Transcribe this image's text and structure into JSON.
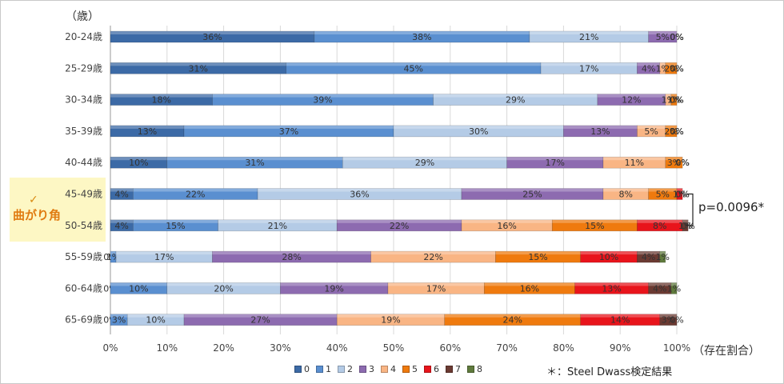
{
  "chart_data": {
    "type": "bar",
    "orientation": "horizontal",
    "stacked": true,
    "y_unit_label": "（歳）",
    "x_unit_label": "（存在割合）",
    "categories": [
      "20-24歳",
      "25-29歳",
      "30-34歳",
      "35-39歳",
      "40-44歳",
      "45-49歳",
      "50-54歳",
      "55-59歳",
      "60-64歳",
      "65-69歳"
    ],
    "x_ticks": [
      "0%",
      "10%",
      "20%",
      "30%",
      "40%",
      "50%",
      "60%",
      "70%",
      "80%",
      "90%",
      "100%"
    ],
    "xlim": [
      0,
      100
    ],
    "grid": true,
    "legend_position": "bottom",
    "series": [
      {
        "name": "0",
        "color": "#3c6aa6",
        "values": [
          36,
          31,
          18,
          13,
          10,
          4,
          4,
          0,
          0,
          0
        ],
        "labels": [
          "36%",
          "31%",
          "18%",
          "13%",
          "10%",
          "4%",
          "4%",
          "0%",
          "0%",
          "0%"
        ]
      },
      {
        "name": "1",
        "color": "#5a8fd0",
        "values": [
          38,
          45,
          39,
          37,
          31,
          22,
          15,
          1,
          10,
          3
        ],
        "labels": [
          "38%",
          "45%",
          "39%",
          "37%",
          "31%",
          "22%",
          "15%",
          "1%",
          "10%",
          "3%"
        ]
      },
      {
        "name": "2",
        "color": "#b4cbe6",
        "values": [
          21,
          17,
          29,
          30,
          29,
          36,
          21,
          17,
          20,
          10
        ],
        "labels": [
          "21%",
          "17%",
          "29%",
          "30%",
          "29%",
          "36%",
          "21%",
          "17%",
          "20%",
          "10%"
        ]
      },
      {
        "name": "3",
        "color": "#8d6bb0",
        "values": [
          5,
          4,
          12,
          13,
          17,
          25,
          22,
          28,
          19,
          27
        ],
        "labels": [
          "5%",
          "4%",
          "12%",
          "13%",
          "17%",
          "25%",
          "22%",
          "28%",
          "19%",
          "27%"
        ]
      },
      {
        "name": "4",
        "color": "#f9b584",
        "values": [
          0,
          1,
          1,
          5,
          11,
          8,
          16,
          22,
          17,
          19
        ],
        "labels": [
          "0%",
          "1%",
          "1%",
          "5%",
          "11%",
          "8%",
          "16%",
          "22%",
          "17%",
          "19%"
        ]
      },
      {
        "name": "5",
        "color": "#ef7a0e",
        "values": [
          0,
          2,
          1,
          2,
          3,
          5,
          15,
          15,
          16,
          24
        ],
        "labels": [
          "0%",
          "2%",
          "1%",
          "2%",
          "3%",
          "5%",
          "15%",
          "15%",
          "16%",
          "24%"
        ]
      },
      {
        "name": "6",
        "color": "#e8141b",
        "values": [
          0,
          0,
          0,
          0,
          0,
          1,
          8,
          10,
          13,
          14
        ],
        "labels": [
          "0%",
          "0%",
          "0%",
          "0%",
          "0%",
          "1%",
          "8%",
          "10%",
          "13%",
          "14%"
        ]
      },
      {
        "name": "7",
        "color": "#6b3a32",
        "values": [
          0,
          0,
          0,
          0,
          0,
          0,
          1,
          4,
          4,
          3
        ],
        "labels": [
          "0%",
          "0%",
          "0%",
          "0%",
          "0%",
          "0%",
          "1%",
          "4%",
          "4%",
          "3%"
        ]
      },
      {
        "name": "8",
        "color": "#5f7a3c",
        "values": [
          0,
          0,
          0,
          0,
          0,
          0,
          0,
          1,
          1,
          0
        ],
        "labels": [
          "0%",
          "0%",
          "0%",
          "0%",
          "0%",
          "0%",
          "0%",
          "1%",
          "1%",
          "0%"
        ]
      }
    ]
  },
  "annotations": {
    "highlight_check": "✓",
    "highlight_text": "曲がり角",
    "p_value": "p=0.0096*",
    "footnote": "＊：Steel Dwass検定結果"
  },
  "colors": {
    "highlight_bg": "#fdf7c4",
    "highlight_text": "#e07b10"
  }
}
